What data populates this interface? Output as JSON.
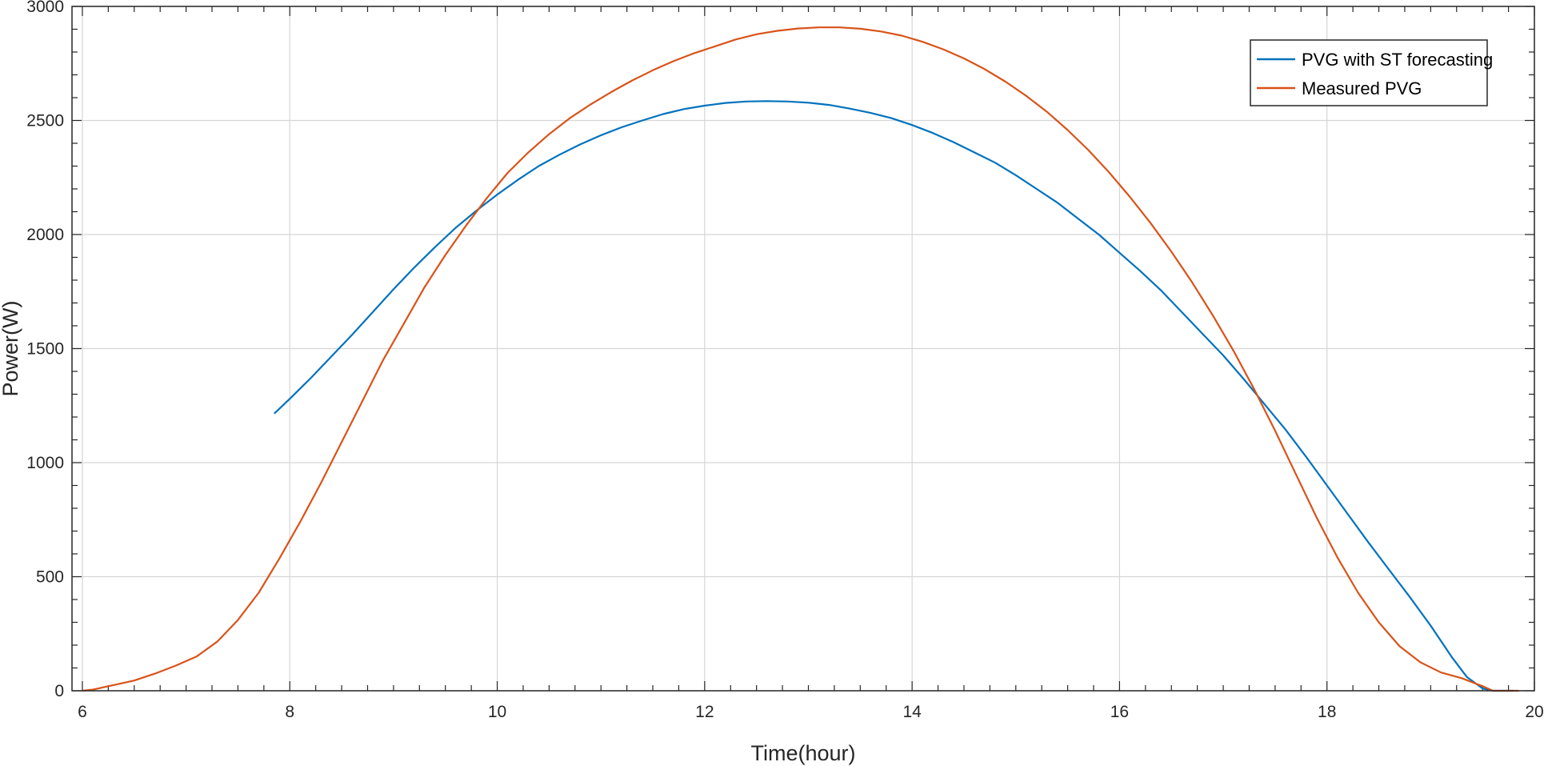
{
  "chart_data": {
    "type": "line",
    "title": "",
    "xlabel": "Time(hour)",
    "ylabel": "Power(W)",
    "xlim": [
      5.9,
      20
    ],
    "ylim": [
      0,
      3000
    ],
    "xticks": [
      6,
      8,
      10,
      12,
      14,
      16,
      18,
      20
    ],
    "yticks": [
      0,
      500,
      1000,
      1500,
      2000,
      2500,
      3000
    ],
    "grid": true,
    "legend_position": "top-right",
    "series": [
      {
        "name": "PVG with ST forecasting",
        "color": "#0072BD",
        "x": [
          7.85,
          8.0,
          8.2,
          8.4,
          8.6,
          8.8,
          9.0,
          9.2,
          9.4,
          9.6,
          9.8,
          10.0,
          10.2,
          10.4,
          10.6,
          10.8,
          11.0,
          11.2,
          11.4,
          11.6,
          11.8,
          12.0,
          12.2,
          12.4,
          12.6,
          12.8,
          13.0,
          13.2,
          13.4,
          13.6,
          13.8,
          14.0,
          14.2,
          14.4,
          14.6,
          14.8,
          15.0,
          15.2,
          15.4,
          15.6,
          15.8,
          16.0,
          16.2,
          16.4,
          16.6,
          16.8,
          17.0,
          17.2,
          17.4,
          17.6,
          17.8,
          18.0,
          18.2,
          18.4,
          18.6,
          18.8,
          19.0,
          19.2,
          19.35,
          19.5,
          19.6,
          19.7,
          19.8
        ],
        "y": [
          1215,
          1280,
          1370,
          1465,
          1560,
          1660,
          1760,
          1855,
          1945,
          2030,
          2105,
          2175,
          2240,
          2300,
          2350,
          2395,
          2435,
          2470,
          2500,
          2528,
          2550,
          2565,
          2577,
          2583,
          2585,
          2583,
          2578,
          2568,
          2552,
          2533,
          2510,
          2480,
          2445,
          2405,
          2360,
          2315,
          2260,
          2200,
          2140,
          2070,
          2000,
          1920,
          1840,
          1755,
          1660,
          1565,
          1470,
          1365,
          1255,
          1145,
          1025,
          900,
          775,
          650,
          530,
          410,
          285,
          150,
          60,
          10,
          0,
          0,
          0
        ]
      },
      {
        "name": "Measured PVG",
        "color": "#D95319",
        "x": [
          6.0,
          6.1,
          6.3,
          6.5,
          6.7,
          6.9,
          7.1,
          7.3,
          7.5,
          7.7,
          7.9,
          8.1,
          8.3,
          8.5,
          8.7,
          8.9,
          9.1,
          9.3,
          9.5,
          9.7,
          9.9,
          10.1,
          10.3,
          10.5,
          10.7,
          10.9,
          11.1,
          11.3,
          11.5,
          11.7,
          11.9,
          12.1,
          12.3,
          12.5,
          12.7,
          12.9,
          13.1,
          13.3,
          13.5,
          13.7,
          13.9,
          14.1,
          14.3,
          14.5,
          14.7,
          14.9,
          15.1,
          15.3,
          15.5,
          15.7,
          15.9,
          16.1,
          16.3,
          16.5,
          16.7,
          16.9,
          17.1,
          17.3,
          17.5,
          17.7,
          17.9,
          18.1,
          18.3,
          18.5,
          18.7,
          18.9,
          19.1,
          19.3,
          19.5,
          19.6,
          19.7,
          19.8,
          19.85
        ],
        "y": [
          0,
          5,
          25,
          45,
          75,
          110,
          150,
          215,
          310,
          430,
          580,
          740,
          910,
          1090,
          1270,
          1450,
          1610,
          1770,
          1910,
          2040,
          2160,
          2270,
          2360,
          2440,
          2510,
          2570,
          2625,
          2675,
          2720,
          2760,
          2795,
          2825,
          2855,
          2878,
          2893,
          2903,
          2908,
          2908,
          2902,
          2890,
          2872,
          2845,
          2812,
          2772,
          2725,
          2670,
          2608,
          2538,
          2458,
          2370,
          2272,
          2165,
          2050,
          1925,
          1790,
          1645,
          1490,
          1320,
          1140,
          950,
          760,
          585,
          430,
          300,
          195,
          125,
          80,
          55,
          20,
          0,
          0,
          0,
          0
        ]
      }
    ]
  }
}
